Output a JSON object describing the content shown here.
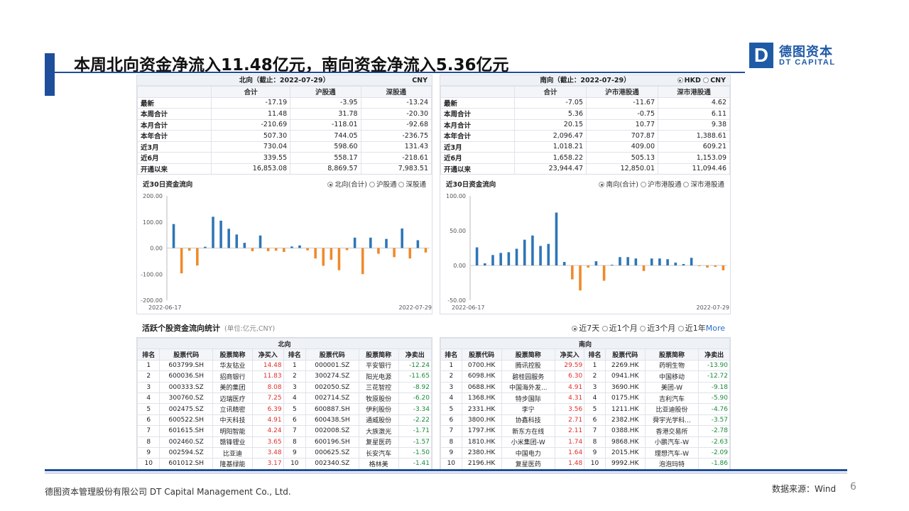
{
  "slide": {
    "title": "本周北向资金净流入11.48亿元，南向资金净流入5.36亿元",
    "logo_mark": "D",
    "logo_cn": "德图资本",
    "logo_en": "DT CAPITAL",
    "footer_company": "德图资本管理股份有限公司  DT Capital Management  Co., Ltd.",
    "footer_source": "数据来源：Wind",
    "page_number": "6"
  },
  "north_summary": {
    "header": "北向（截止：2022-07-29）",
    "currency": "CNY",
    "columns": [
      "合计",
      "沪股通",
      "深股通"
    ],
    "rows": [
      {
        "label": "最新",
        "values": [
          "-17.19",
          "-3.95",
          "-13.24"
        ]
      },
      {
        "label": "本周合计",
        "values": [
          "11.48",
          "31.78",
          "-20.30"
        ]
      },
      {
        "label": "本月合计",
        "values": [
          "-210.69",
          "-118.01",
          "-92.68"
        ]
      },
      {
        "label": "本年合计",
        "values": [
          "507.30",
          "744.05",
          "-236.75"
        ]
      },
      {
        "label": "近3月",
        "values": [
          "730.04",
          "598.60",
          "131.43"
        ]
      },
      {
        "label": "近6月",
        "values": [
          "339.55",
          "558.17",
          "-218.61"
        ]
      },
      {
        "label": "开通以来",
        "values": [
          "16,853.08",
          "8,869.57",
          "7,983.51"
        ]
      }
    ]
  },
  "south_summary": {
    "header": "南向（截止：2022-07-29）",
    "currency_options": [
      "HKD",
      "CNY"
    ],
    "columns": [
      "合计",
      "沪市港股通",
      "深市港股通"
    ],
    "rows": [
      {
        "label": "最新",
        "values": [
          "-7.05",
          "-11.67",
          "4.62"
        ]
      },
      {
        "label": "本周合计",
        "values": [
          "5.36",
          "-0.75",
          "6.11"
        ]
      },
      {
        "label": "本月合计",
        "values": [
          "20.15",
          "10.77",
          "9.38"
        ]
      },
      {
        "label": "本年合计",
        "values": [
          "2,096.47",
          "707.87",
          "1,388.61"
        ]
      },
      {
        "label": "近3月",
        "values": [
          "1,018.21",
          "409.00",
          "609.21"
        ]
      },
      {
        "label": "近6月",
        "values": [
          "1,658.22",
          "505.13",
          "1,153.09"
        ]
      },
      {
        "label": "开通以来",
        "values": [
          "23,944.47",
          "12,850.01",
          "11,094.46"
        ]
      }
    ]
  },
  "north_chart_ui": {
    "title": "近30日资金流向",
    "legend": [
      "北向(合计)",
      "沪股通",
      "深股通"
    ]
  },
  "south_chart_ui": {
    "title": "近30日资金流向",
    "legend": [
      "南向(合计)",
      "沪市港股通",
      "深市港股通"
    ]
  },
  "chart_data": [
    {
      "type": "bar",
      "title": "近30日资金流向",
      "x_start": "2022-06-17",
      "x_end": "2022-07-29",
      "ylim": [
        -200,
        200
      ],
      "yticks": [
        "200.00",
        "100.00",
        "0.00",
        "-100.00",
        "-200.00"
      ],
      "positive_color": "#2e75b6",
      "negative_color": "#f0892a",
      "series": [
        {
          "name": "北向(合计)",
          "values": [
            92,
            -97,
            -10,
            -67,
            5,
            120,
            105,
            74,
            52,
            20,
            -12,
            48,
            -12,
            -10,
            -15,
            6,
            10,
            -9,
            -40,
            -68,
            -45,
            -85,
            -8,
            40,
            -100,
            40,
            -22,
            35,
            -35,
            75,
            -40,
            30,
            -17
          ]
        }
      ]
    },
    {
      "type": "bar",
      "title": "近30日资金流向",
      "x_start": "2022-06-17",
      "x_end": "2022-07-29",
      "ylim": [
        -50,
        100
      ],
      "yticks": [
        "100.00",
        "50.00",
        "0.00",
        "-50.00"
      ],
      "positive_color": "#2e75b6",
      "negative_color": "#f0892a",
      "series": [
        {
          "name": "南向(合计)",
          "values": [
            26,
            3,
            15,
            18,
            19,
            24,
            37,
            43,
            28,
            31,
            76,
            5,
            -20,
            -36,
            -3,
            6,
            -22,
            1,
            12,
            12,
            10,
            -8,
            10,
            10,
            9,
            4,
            2,
            11,
            -1,
            -3,
            -2,
            -7
          ]
        }
      ]
    }
  ],
  "rank_section": {
    "title": "活跃个股资金流向统计",
    "unit": "(单位:亿元,CNY)",
    "periods": [
      "近7天",
      "近1个月",
      "近3个月",
      "近1年"
    ],
    "more_label": "More"
  },
  "north_rank": {
    "group_label": "北向",
    "columns": [
      "排名",
      "股票代码",
      "股票简称",
      "净买入",
      "排名",
      "股票代码",
      "股票简称",
      "净卖出"
    ],
    "rows": [
      [
        "1",
        "603799.SH",
        "华友钴业",
        "14.48",
        "1",
        "000001.SZ",
        "平安银行",
        "-12.24"
      ],
      [
        "2",
        "600036.SH",
        "招商银行",
        "11.83",
        "2",
        "300274.SZ",
        "阳光电源",
        "-11.65"
      ],
      [
        "3",
        "000333.SZ",
        "美的集团",
        "8.08",
        "3",
        "002050.SZ",
        "三花智控",
        "-8.92"
      ],
      [
        "4",
        "300760.SZ",
        "迈瑞医疗",
        "7.25",
        "4",
        "002714.SZ",
        "牧原股份",
        "-6.20"
      ],
      [
        "5",
        "002475.SZ",
        "立讯精密",
        "6.39",
        "5",
        "600887.SH",
        "伊利股份",
        "-3.34"
      ],
      [
        "6",
        "600522.SH",
        "中天科技",
        "4.91",
        "6",
        "600438.SH",
        "通威股份",
        "-2.22"
      ],
      [
        "7",
        "601615.SH",
        "明阳智能",
        "4.24",
        "7",
        "002008.SZ",
        "大族激光",
        "-1.71"
      ],
      [
        "8",
        "002460.SZ",
        "赣锋锂业",
        "3.65",
        "8",
        "600196.SH",
        "复星医药",
        "-1.57"
      ],
      [
        "9",
        "002594.SZ",
        "比亚迪",
        "3.48",
        "9",
        "000625.SZ",
        "长安汽车",
        "-1.50"
      ],
      [
        "10",
        "601012.SH",
        "隆基绿能",
        "3.17",
        "10",
        "002340.SZ",
        "格林美",
        "-1.41"
      ]
    ]
  },
  "south_rank": {
    "group_label": "南向",
    "columns": [
      "排名",
      "股票代码",
      "股票简称",
      "净买入",
      "排名",
      "股票代码",
      "股票简称",
      "净卖出"
    ],
    "rows": [
      [
        "1",
        "0700.HK",
        "腾讯控股",
        "29.59",
        "1",
        "2269.HK",
        "药明生物",
        "-13.90"
      ],
      [
        "2",
        "6098.HK",
        "碧桂园服务",
        "6.30",
        "2",
        "0941.HK",
        "中国移动",
        "-12.72"
      ],
      [
        "3",
        "0688.HK",
        "中国海外发...",
        "4.91",
        "3",
        "3690.HK",
        "美团-W",
        "-9.18"
      ],
      [
        "4",
        "1368.HK",
        "特步国际",
        "4.31",
        "4",
        "0175.HK",
        "吉利汽车",
        "-5.90"
      ],
      [
        "5",
        "2331.HK",
        "李宁",
        "3.56",
        "5",
        "1211.HK",
        "比亚迪股份",
        "-4.76"
      ],
      [
        "6",
        "3800.HK",
        "协鑫科技",
        "2.71",
        "6",
        "2382.HK",
        "舜宇光学科...",
        "-3.57"
      ],
      [
        "7",
        "1797.HK",
        "新东方在线",
        "2.11",
        "7",
        "0388.HK",
        "香港交易所",
        "-2.78"
      ],
      [
        "8",
        "1810.HK",
        "小米集团-W",
        "1.74",
        "8",
        "9868.HK",
        "小鹏汽车-W",
        "-2.63"
      ],
      [
        "9",
        "2380.HK",
        "中国电力",
        "1.64",
        "9",
        "2015.HK",
        "理想汽车-W",
        "-2.09"
      ],
      [
        "10",
        "2196.HK",
        "复星医药",
        "1.48",
        "10",
        "9992.HK",
        "泡泡玛特",
        "-1.86"
      ]
    ]
  }
}
